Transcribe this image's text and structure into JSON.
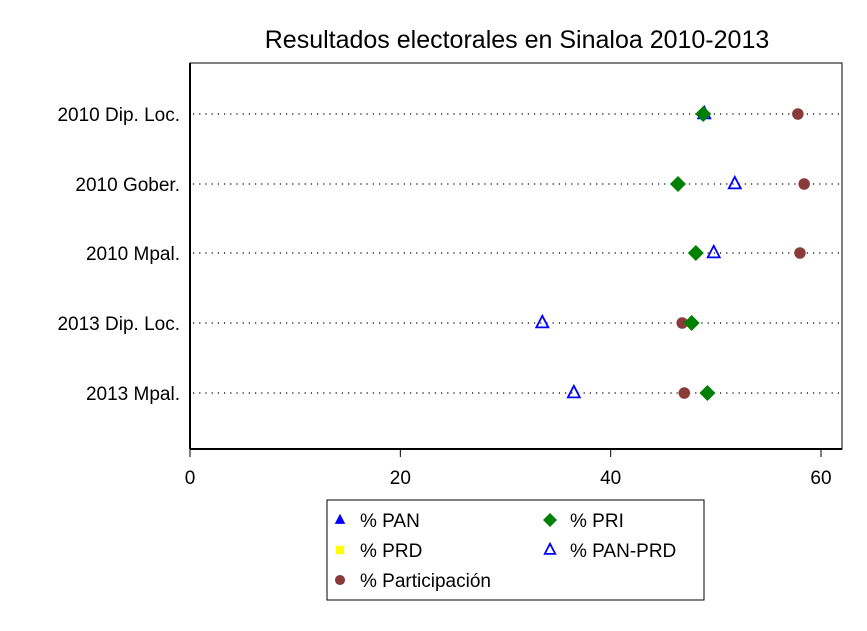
{
  "chart_data": {
    "type": "scatter",
    "title": "Resultados electorales en Sinaloa 2010-2013",
    "xlabel": "",
    "ylabel": "",
    "xlim": [
      0,
      62
    ],
    "xticks": [
      0,
      20,
      40,
      60
    ],
    "xtick_labels": [
      "0",
      "20",
      "40",
      "60"
    ],
    "grid": "dotted horizontal lines per category",
    "categories": [
      "2010 Dip. Loc.",
      "2010 Gober.",
      "2010 Mpal.",
      "2013 Dip. Loc.",
      "2013 Mpal."
    ],
    "series": [
      {
        "name": "% PAN",
        "marker": "triangle-filled",
        "color": "#0000ff",
        "values": [
          null,
          null,
          null,
          null,
          null
        ]
      },
      {
        "name": "% PRI",
        "marker": "diamond-filled",
        "color": "#008000",
        "values": [
          48.8,
          46.4,
          48.1,
          47.7,
          49.2
        ]
      },
      {
        "name": "% PRD",
        "marker": "square-filled",
        "color": "#ffff00",
        "values": [
          null,
          null,
          null,
          null,
          null
        ]
      },
      {
        "name": "% PAN-PRD",
        "marker": "triangle-hollow",
        "color": "#0000ff",
        "values": [
          48.9,
          51.8,
          49.8,
          33.5,
          36.5
        ]
      },
      {
        "name": "% Participación",
        "marker": "circle-filled",
        "color": "#8b3a3a",
        "values": [
          57.8,
          58.4,
          58.0,
          46.8,
          47.0
        ]
      }
    ],
    "legend": {
      "placement": "bottom-center",
      "columns": 2,
      "entries": [
        "% PAN",
        "% PRI",
        "% PRD",
        "% PAN-PRD",
        "% Participación"
      ]
    }
  }
}
